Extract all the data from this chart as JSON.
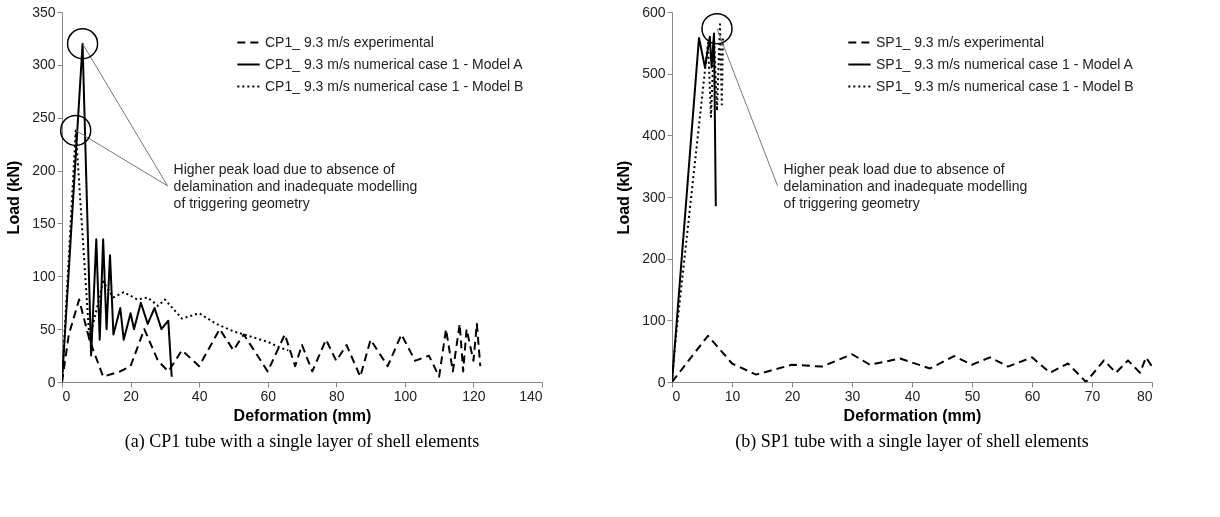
{
  "chart_data": [
    {
      "type": "line",
      "title": "(a) CP1 tube with a single layer of shell elements",
      "xlabel": "Deformation (mm)",
      "ylabel": "Load (kN)",
      "xlim": [
        0,
        140
      ],
      "xticks": [
        0,
        20,
        40,
        60,
        80,
        100,
        120,
        140
      ],
      "ylim": [
        0,
        350
      ],
      "yticks": [
        0,
        50,
        100,
        150,
        200,
        250,
        300,
        350
      ],
      "legend": "top right",
      "annotations": [
        {
          "text": "Higher peak load due to absence of delamination and inadequate modelling of triggering geometry",
          "x": 6,
          "y": 320
        }
      ],
      "series": [
        {
          "name": "CP1_ 9.3 m/s experimental",
          "color": "#000000",
          "line_style": "dashed",
          "x": [
            0,
            2,
            5,
            8,
            12,
            17,
            20,
            24,
            28,
            31,
            35,
            40,
            46,
            50,
            53,
            57,
            60,
            65,
            68,
            70,
            73,
            77,
            80,
            83,
            87,
            90,
            95,
            99,
            103,
            107,
            110,
            112,
            114,
            116,
            117,
            118,
            120,
            121,
            122
          ],
          "values": [
            0,
            45,
            78,
            40,
            5,
            10,
            15,
            50,
            20,
            10,
            30,
            15,
            50,
            30,
            45,
            25,
            10,
            45,
            15,
            35,
            10,
            40,
            20,
            35,
            5,
            40,
            15,
            45,
            20,
            25,
            5,
            50,
            10,
            55,
            10,
            50,
            20,
            55,
            15
          ]
        },
        {
          "name": "CP1_ 9.3 m/s numerical case 1 - Model A",
          "color": "#000000",
          "line_style": "solid",
          "x": [
            0,
            6,
            8.5,
            10,
            11,
            12,
            13,
            14,
            15,
            17,
            18,
            20,
            21,
            23,
            25,
            27,
            29,
            31,
            32
          ],
          "values": [
            0,
            320,
            25,
            135,
            40,
            135,
            50,
            120,
            45,
            70,
            40,
            65,
            50,
            75,
            55,
            70,
            50,
            58,
            5
          ]
        },
        {
          "name": "CP1_ 9.3 m/s numerical case 1 - Model B",
          "color": "#000000",
          "line_style": "dotted",
          "x": [
            0,
            4,
            8,
            12,
            15,
            18,
            22,
            25,
            28,
            30,
            35,
            40,
            45,
            50,
            55,
            60,
            64,
            66
          ],
          "values": [
            0,
            238,
            40,
            95,
            80,
            85,
            78,
            80,
            72,
            78,
            60,
            65,
            55,
            48,
            43,
            38,
            32,
            30
          ]
        }
      ]
    },
    {
      "type": "line",
      "title": "(b) SP1 tube with a single layer of shell elements",
      "xlabel": "Deformation (mm)",
      "ylabel": "Load (kN)",
      "xlim": [
        0,
        80
      ],
      "xticks": [
        0,
        10,
        20,
        30,
        40,
        50,
        60,
        70,
        80
      ],
      "ylim": [
        0,
        600
      ],
      "yticks": [
        0,
        100,
        200,
        300,
        400,
        500,
        600
      ],
      "legend": "top right",
      "annotations": [
        {
          "text": "Higher peak load due to absence of delamination and inadequate modelling of triggering geometry",
          "x": 7.5,
          "y": 573
        }
      ],
      "series": [
        {
          "name": "SP1_ 9.3 m/s experimental",
          "color": "#000000",
          "line_style": "dashed",
          "x": [
            0,
            6,
            10,
            14,
            20,
            25,
            30,
            33,
            38,
            43,
            47,
            50,
            53,
            56,
            60,
            63,
            66,
            69,
            72,
            74,
            76,
            78,
            79,
            80
          ],
          "values": [
            0,
            75,
            30,
            12,
            28,
            25,
            45,
            28,
            38,
            22,
            42,
            28,
            40,
            25,
            40,
            15,
            30,
            0,
            35,
            15,
            35,
            15,
            40,
            25
          ]
        },
        {
          "name": "SP1_ 9.3 m/s numerical case 1 - Model A",
          "color": "#000000",
          "line_style": "solid",
          "x": [
            0,
            4.5,
            5.5,
            6.3,
            6.6,
            7,
            7.3
          ],
          "values": [
            0,
            558,
            510,
            560,
            510,
            565,
            285
          ]
        },
        {
          "name": "SP1_ 9.3 m/s numerical case 1 - Model B",
          "color": "#000000",
          "line_style": "dotted",
          "x": [
            0,
            0.5,
            6,
            6.5,
            7,
            7.5,
            8,
            8.3,
            8.5
          ],
          "values": [
            0,
            60,
            550,
            430,
            560,
            440,
            580,
            450,
            560
          ]
        }
      ]
    }
  ]
}
